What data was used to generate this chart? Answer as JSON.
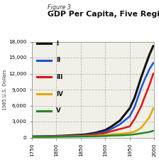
{
  "figure_label": "Figure 3",
  "title": "GDP Per Capita, Five Regions",
  "ylabel": "1985 U.S. Dollars",
  "xlim": [
    1750,
    2000
  ],
  "ylim": [
    0,
    18000
  ],
  "yticks": [
    0,
    3000,
    6000,
    9000,
    12000,
    15000,
    18000
  ],
  "xticks": [
    1750,
    1800,
    1850,
    1900,
    1950,
    2000
  ],
  "bg_color": "#ffffff",
  "plot_bg": "#f0efe8",
  "regions": [
    "I",
    "II",
    "III",
    "IV",
    "V"
  ],
  "colors": [
    "#111111",
    "#1a56cc",
    "#dd1515",
    "#ddaa00",
    "#22882a"
  ],
  "years": [
    1750,
    1780,
    1800,
    1820,
    1840,
    1860,
    1880,
    1900,
    1913,
    1930,
    1950,
    1960,
    1973,
    1980,
    1990,
    1998
  ],
  "data": {
    "I": [
      200,
      230,
      280,
      370,
      470,
      590,
      900,
      1400,
      2100,
      3200,
      5500,
      7500,
      11200,
      13000,
      15500,
      17200
    ],
    "II": [
      170,
      200,
      240,
      300,
      380,
      490,
      720,
      1100,
      1650,
      2500,
      4000,
      5800,
      9200,
      10800,
      12800,
      14000
    ],
    "III": [
      160,
      180,
      210,
      260,
      320,
      400,
      580,
      850,
      1200,
      1600,
      2100,
      3500,
      5800,
      7500,
      9800,
      12000
    ],
    "IV": [
      155,
      165,
      180,
      200,
      230,
      260,
      330,
      460,
      630,
      700,
      900,
      1100,
      1800,
      2600,
      3800,
      5500
    ],
    "V": [
      140,
      150,
      160,
      175,
      190,
      210,
      240,
      300,
      380,
      420,
      520,
      620,
      800,
      900,
      1050,
      1280
    ]
  }
}
